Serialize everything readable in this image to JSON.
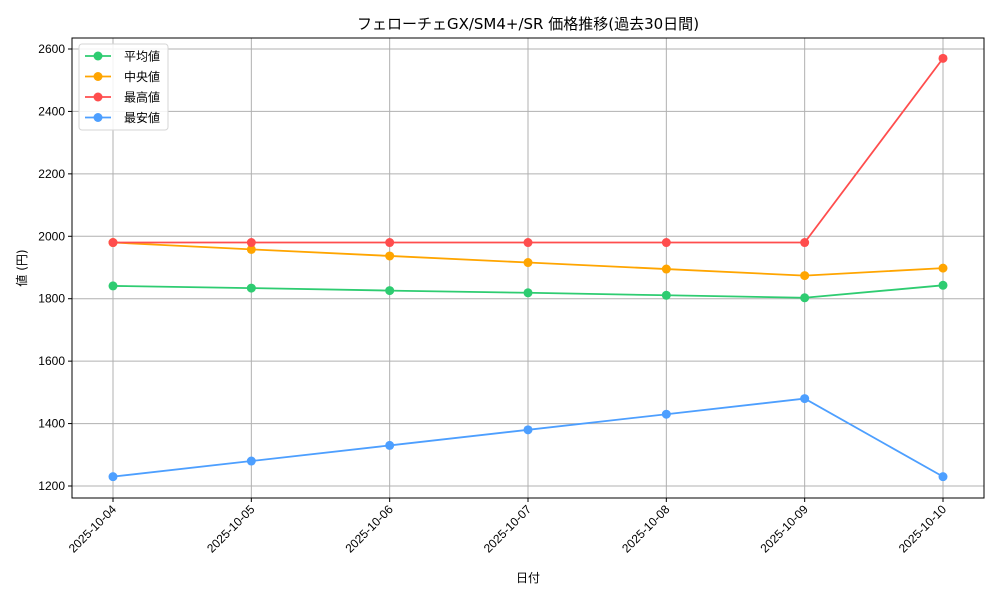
{
  "chart_data": {
    "type": "line",
    "title": "フェローチェGX/SM4+/SR 価格推移(過去30日間)",
    "xlabel": "日付",
    "ylabel": "値 (円)",
    "categories": [
      "2025-10-04",
      "2025-10-05",
      "2025-10-06",
      "2025-10-07",
      "2025-10-08",
      "2025-10-09",
      "2025-10-10"
    ],
    "series": [
      {
        "name": "平均値",
        "color": "#2ecc71",
        "values": [
          1841,
          1834,
          1826,
          1819,
          1811,
          1803,
          1843
        ]
      },
      {
        "name": "中央値",
        "color": "#ffa500",
        "values": [
          1980,
          1958,
          1937,
          1916,
          1895,
          1874,
          1898
        ]
      },
      {
        "name": "最高値",
        "color": "#ff4d4d",
        "values": [
          1980,
          1980,
          1980,
          1980,
          1980,
          1980,
          2570
        ]
      },
      {
        "name": "最安値",
        "color": "#4d9fff",
        "values": [
          1230,
          1280,
          1330,
          1380,
          1430,
          1480,
          1230
        ]
      }
    ],
    "yticks": [
      1200,
      1400,
      1600,
      1800,
      2000,
      2200,
      2400,
      2600
    ],
    "ylim": [
      1163,
      2640
    ],
    "grid": true,
    "legend_position": "upper left",
    "marker": "circle"
  }
}
